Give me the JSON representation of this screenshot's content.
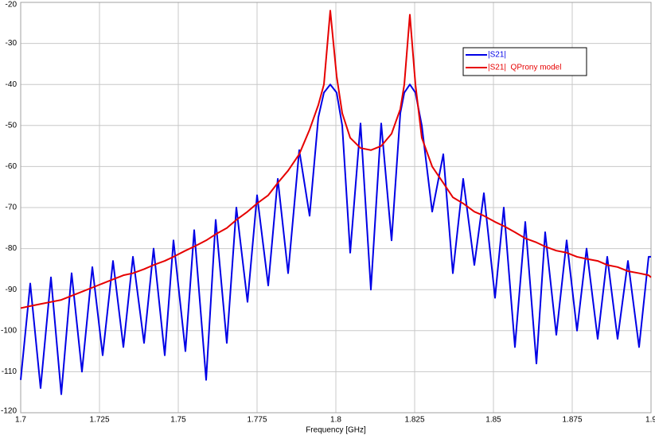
{
  "chart_data": {
    "type": "line",
    "xlabel": "Frequency [GHz]",
    "xlim": [
      1.7,
      1.9
    ],
    "ylim": [
      -120,
      -20
    ],
    "xticks": [
      1.7,
      1.725,
      1.75,
      1.775,
      1.8,
      1.825,
      1.85,
      1.875,
      1.9
    ],
    "yticks": [
      -20,
      -30,
      -40,
      -50,
      -60,
      -70,
      -80,
      -90,
      -100,
      -110,
      -120
    ],
    "grid": true,
    "legend": "upper right",
    "x": [
      1.7,
      1.70303,
      1.70631,
      1.7096,
      1.71288,
      1.71616,
      1.71944,
      1.72273,
      1.72601,
      1.72929,
      1.73258,
      1.73561,
      1.73914,
      1.74217,
      1.74571,
      1.74848,
      1.75227,
      1.75505,
      1.75884,
      1.76187,
      1.7654,
      1.76843,
      1.77197,
      1.775,
      1.77854,
      1.78157,
      1.78485,
      1.78838,
      1.79167,
      1.79444,
      1.79621,
      1.79823,
      1.80025,
      1.80202,
      1.80455,
      1.80783,
      1.81111,
      1.81439,
      1.81768,
      1.82045,
      1.82172,
      1.82348,
      1.82525,
      1.82727,
      1.83056,
      1.83409,
      1.83712,
      1.8404,
      1.84394,
      1.84697,
      1.85051,
      1.85328,
      1.85682,
      1.8601,
      1.86364,
      1.86641,
      1.86995,
      1.87323,
      1.87652,
      1.87955,
      1.88308,
      1.88611,
      1.88939,
      1.89268,
      1.89621,
      1.89924,
      1.9
    ],
    "series": [
      {
        "name": "|S21|",
        "color": "#0000e6",
        "values": [
          -112,
          -88.5,
          -114,
          -87,
          -115.5,
          -86,
          -110,
          -84.5,
          -106,
          -83,
          -104,
          -82,
          -103,
          -80,
          -106,
          -78,
          -105,
          -75.5,
          -112,
          -73,
          -103,
          -70,
          -93,
          -67,
          -89,
          -63,
          -86,
          -56,
          -72,
          -48,
          -42,
          -40,
          -42,
          -50,
          -81,
          -49.5,
          -90,
          -49.5,
          -78,
          -47,
          -42,
          -40,
          -42,
          -50,
          -71,
          -57,
          -86,
          -63,
          -84,
          -66.5,
          -92,
          -70,
          -104,
          -73.5,
          -108,
          -76,
          -101,
          -78,
          -100,
          -80,
          -102,
          -82,
          -102,
          -83,
          -104,
          -82,
          -82
        ]
      },
      {
        "name": "|S21|  QProny model",
        "color": "#e60000",
        "values": [
          -94.5,
          -94,
          -93.5,
          -93,
          -92.5,
          -91.5,
          -90.5,
          -89.5,
          -88.5,
          -87.5,
          -86.5,
          -86,
          -85,
          -84,
          -83,
          -82,
          -80.5,
          -79.5,
          -78,
          -76.5,
          -75,
          -73,
          -71,
          -69,
          -67,
          -64,
          -61,
          -57,
          -51,
          -45,
          -40,
          -22,
          -38,
          -47,
          -53,
          -55.5,
          -56,
          -55,
          -52,
          -46,
          -40,
          -23,
          -40,
          -53,
          -60,
          -64,
          -67.5,
          -69,
          -71,
          -72,
          -73.5,
          -74.5,
          -76,
          -77.5,
          -78.5,
          -79.5,
          -80.5,
          -81,
          -82,
          -82.5,
          -83,
          -84,
          -84.5,
          -85.5,
          -86,
          -86.5,
          -87
        ]
      }
    ]
  }
}
